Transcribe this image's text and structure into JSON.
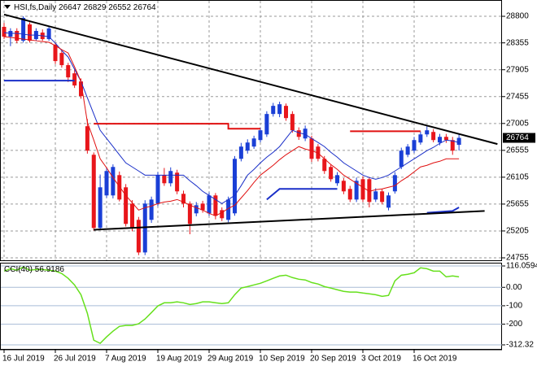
{
  "chart_data": [
    {
      "type": "candlestick",
      "title": "HSI,fs,Daily",
      "categories": [
        "16 Jul 2019",
        null,
        null,
        null,
        null,
        null,
        null,
        null,
        "26 Jul 2019",
        null,
        null,
        null,
        null,
        null,
        null,
        null,
        "7 Aug 2019",
        null,
        null,
        null,
        null,
        null,
        null,
        null,
        "19 Aug 2019",
        null,
        null,
        null,
        null,
        null,
        null,
        null,
        "29 Aug 2019",
        null,
        null,
        null,
        null,
        null,
        null,
        null,
        "10 Sep 2019",
        null,
        null,
        null,
        null,
        null,
        null,
        null,
        "20 Sep 2019",
        null,
        null,
        null,
        null,
        null,
        null,
        null,
        "3 Oct 2019",
        null,
        null,
        null,
        null,
        null,
        null,
        null,
        "16 Oct 2019",
        null,
        null,
        null,
        null,
        null,
        null,
        null
      ],
      "open": [
        28623,
        28459,
        28555,
        28391,
        28664,
        28418,
        28527,
        28418,
        28323,
        28186,
        27982,
        27845,
        27709,
        26959,
        26481,
        25255,
        25800,
        25800,
        26140,
        25936,
        25663,
        25391,
        24845,
        25391,
        25663,
        26140,
        26004,
        26181,
        25827,
        25663,
        25500,
        25663,
        25500,
        25800,
        25554,
        25391,
        25500,
        26413,
        26550,
        26618,
        26727,
        26822,
        27164,
        27164,
        27300,
        27164,
        26891,
        26754,
        26754,
        26618,
        26413,
        26277,
        26004,
        26045,
        25909,
        25731,
        26072,
        26072,
        25731,
        25868,
        25595,
        25868,
        26277,
        26481,
        26550,
        26686,
        26822,
        26863,
        26686,
        26781,
        26727,
        26647
      ],
      "high": [
        28690,
        28600,
        28600,
        28800,
        28700,
        28600,
        28580,
        28640,
        28360,
        28230,
        28020,
        27900,
        27760,
        27080,
        26520,
        26150,
        26260,
        26320,
        26200,
        25990,
        25720,
        25440,
        25720,
        25780,
        26190,
        26260,
        26270,
        26230,
        25880,
        25700,
        25690,
        25710,
        25850,
        25840,
        25600,
        25780,
        26460,
        26680,
        26740,
        26800,
        26940,
        27210,
        27350,
        27370,
        27340,
        27210,
        26940,
        26970,
        26800,
        26660,
        26460,
        26320,
        26190,
        26090,
        25960,
        26100,
        26120,
        26110,
        25920,
        25910,
        25850,
        26190,
        26600,
        26660,
        26780,
        26870,
        26960,
        26910,
        26830,
        26830,
        26780,
        26829
      ],
      "low": [
        28420,
        28300,
        28350,
        28360,
        28360,
        28390,
        28390,
        28390,
        28000,
        27940,
        27700,
        27600,
        27420,
        26500,
        25210,
        25220,
        25760,
        25750,
        25700,
        25280,
        25200,
        24800,
        24800,
        25340,
        25620,
        25960,
        25950,
        25820,
        25600,
        25150,
        25450,
        25510,
        25460,
        25400,
        25370,
        25350,
        25460,
        26370,
        26500,
        26580,
        26690,
        26780,
        27120,
        27110,
        27050,
        26850,
        26730,
        26710,
        26360,
        26370,
        26160,
        26030,
        25960,
        25820,
        25690,
        25690,
        25690,
        25600,
        25690,
        25650,
        25550,
        25830,
        26240,
        26440,
        26510,
        26650,
        26780,
        26690,
        26640,
        26680,
        26480,
        26552
      ],
      "close": [
        28459,
        28555,
        28391,
        28773,
        28391,
        28555,
        28418,
        28596,
        28050,
        27982,
        27777,
        27641,
        27463,
        26550,
        25255,
        25936,
        26209,
        26277,
        25731,
        25323,
        25255,
        24845,
        25663,
        25731,
        26140,
        26004,
        26209,
        25868,
        25663,
        25323,
        25636,
        25554,
        25800,
        25459,
        25418,
        25731,
        26413,
        26618,
        26686,
        26754,
        26891,
        27164,
        27300,
        27327,
        27095,
        26891,
        26781,
        26918,
        26413,
        26413,
        26209,
        26072,
        26140,
        25868,
        25731,
        26045,
        25731,
        25690,
        25868,
        25690,
        25800,
        26140,
        26550,
        26618,
        26727,
        26822,
        26891,
        26727,
        26781,
        26727,
        26550,
        26764
      ],
      "up_color": "#1a3fd6",
      "down_color": "#e8161b",
      "moving_averages": [
        {
          "color": "#1a2fc8",
          "values": [
            28527,
            28514,
            28514,
            28500,
            28486,
            28486,
            28473,
            28459,
            28350,
            28227,
            28118,
            27914,
            27709,
            27436,
            27164,
            26891,
            26754,
            26618,
            26481,
            26345,
            26277,
            26209,
            26140,
            26140,
            26140,
            26140,
            26140,
            26140,
            26140,
            26045,
            25963,
            25868,
            25800,
            25731,
            25663,
            25731,
            25800,
            25963,
            26140,
            26236,
            26345,
            26441,
            26522,
            26618,
            26754,
            26891,
            26850,
            26822,
            26754,
            26686,
            26618,
            26522,
            26441,
            26345,
            26277,
            26209,
            26140,
            26099,
            26072,
            26099,
            26140,
            26209,
            26277,
            26345,
            26413,
            26481,
            26550,
            26604,
            26672,
            26727,
            26713,
            26686
          ]
        },
        {
          "color": "#e01010",
          "values": [
            28459,
            28446,
            28432,
            28418,
            28405,
            28391,
            28377,
            28364,
            28309,
            28241,
            28186,
            27955,
            27709,
            27027,
            26727,
            26413,
            26263,
            26099,
            25949,
            25800,
            25677,
            25554,
            25595,
            25622,
            25663,
            25690,
            25704,
            25731,
            25690,
            25636,
            25595,
            25554,
            25500,
            25459,
            25513,
            25582,
            25636,
            25758,
            25881,
            26018,
            26140,
            26222,
            26304,
            26399,
            26481,
            26550,
            26618,
            26577,
            26550,
            26509,
            26413,
            26318,
            26236,
            26140,
            26072,
            26004,
            25936,
            25868,
            25895,
            25909,
            25936,
            25963,
            26045,
            26113,
            26195,
            26277,
            26304,
            26345,
            26372,
            26413,
            26413,
            26413
          ]
        }
      ],
      "lines": [
        {
          "color": "#1a2fc8",
          "x": [
            0,
            11
          ],
          "y": [
            27723,
            27723
          ]
        },
        {
          "color": "#e01010",
          "x": [
            14,
            35,
            35,
            40
          ],
          "y": [
            27000,
            27000,
            26918,
            26918
          ]
        },
        {
          "color": "#1a2fc8",
          "x": [
            41,
            43,
            52
          ],
          "y": [
            25731,
            25909,
            25909
          ]
        },
        {
          "color": "#e01010",
          "x": [
            54,
            65
          ],
          "y": [
            26875,
            26875
          ]
        },
        {
          "color": "#1a2fc8",
          "x": [
            66,
            70,
            71
          ],
          "y": [
            25510,
            25540,
            25600
          ]
        },
        {
          "color": "#000000",
          "x": [
            0,
            77
          ],
          "y": [
            28830,
            26660
          ]
        },
        {
          "color": "#000000",
          "x": [
            14,
            75
          ],
          "y": [
            25225,
            25540
          ]
        }
      ],
      "ylim": [
        24714,
        28964
      ],
      "yticks": [
        28800,
        28355,
        27905,
        27455,
        27005,
        26555,
        26105,
        25655,
        25205,
        24755
      ],
      "grid": true
    },
    {
      "type": "line",
      "title": "CCI(40)",
      "color": "#66e01c",
      "values": [
        88,
        101,
        93,
        110,
        93,
        97,
        97,
        93,
        88,
        75,
        49,
        13,
        -40,
        -141,
        -287,
        -304,
        -269,
        -238,
        -212,
        -207,
        -207,
        -198,
        -172,
        -137,
        -101,
        -84,
        -84,
        -79,
        -84,
        -93,
        -88,
        -79,
        -79,
        -84,
        -88,
        -84,
        -40,
        -4,
        4,
        13,
        22,
        35,
        49,
        62,
        66,
        53,
        44,
        40,
        26,
        18,
        4,
        -4,
        -13,
        -22,
        -26,
        -26,
        -31,
        -35,
        -40,
        -49,
        -44,
        35,
        66,
        71,
        79,
        106,
        101,
        88,
        88,
        57,
        62,
        56.9186
      ],
      "ylim": [
        -312.32,
        116.0594
      ],
      "yticks": [
        116.0594,
        {
          "value": 0,
          "label": "0.00"
        },
        -100,
        -200,
        -312.32
      ],
      "grid": true
    }
  ]
}
